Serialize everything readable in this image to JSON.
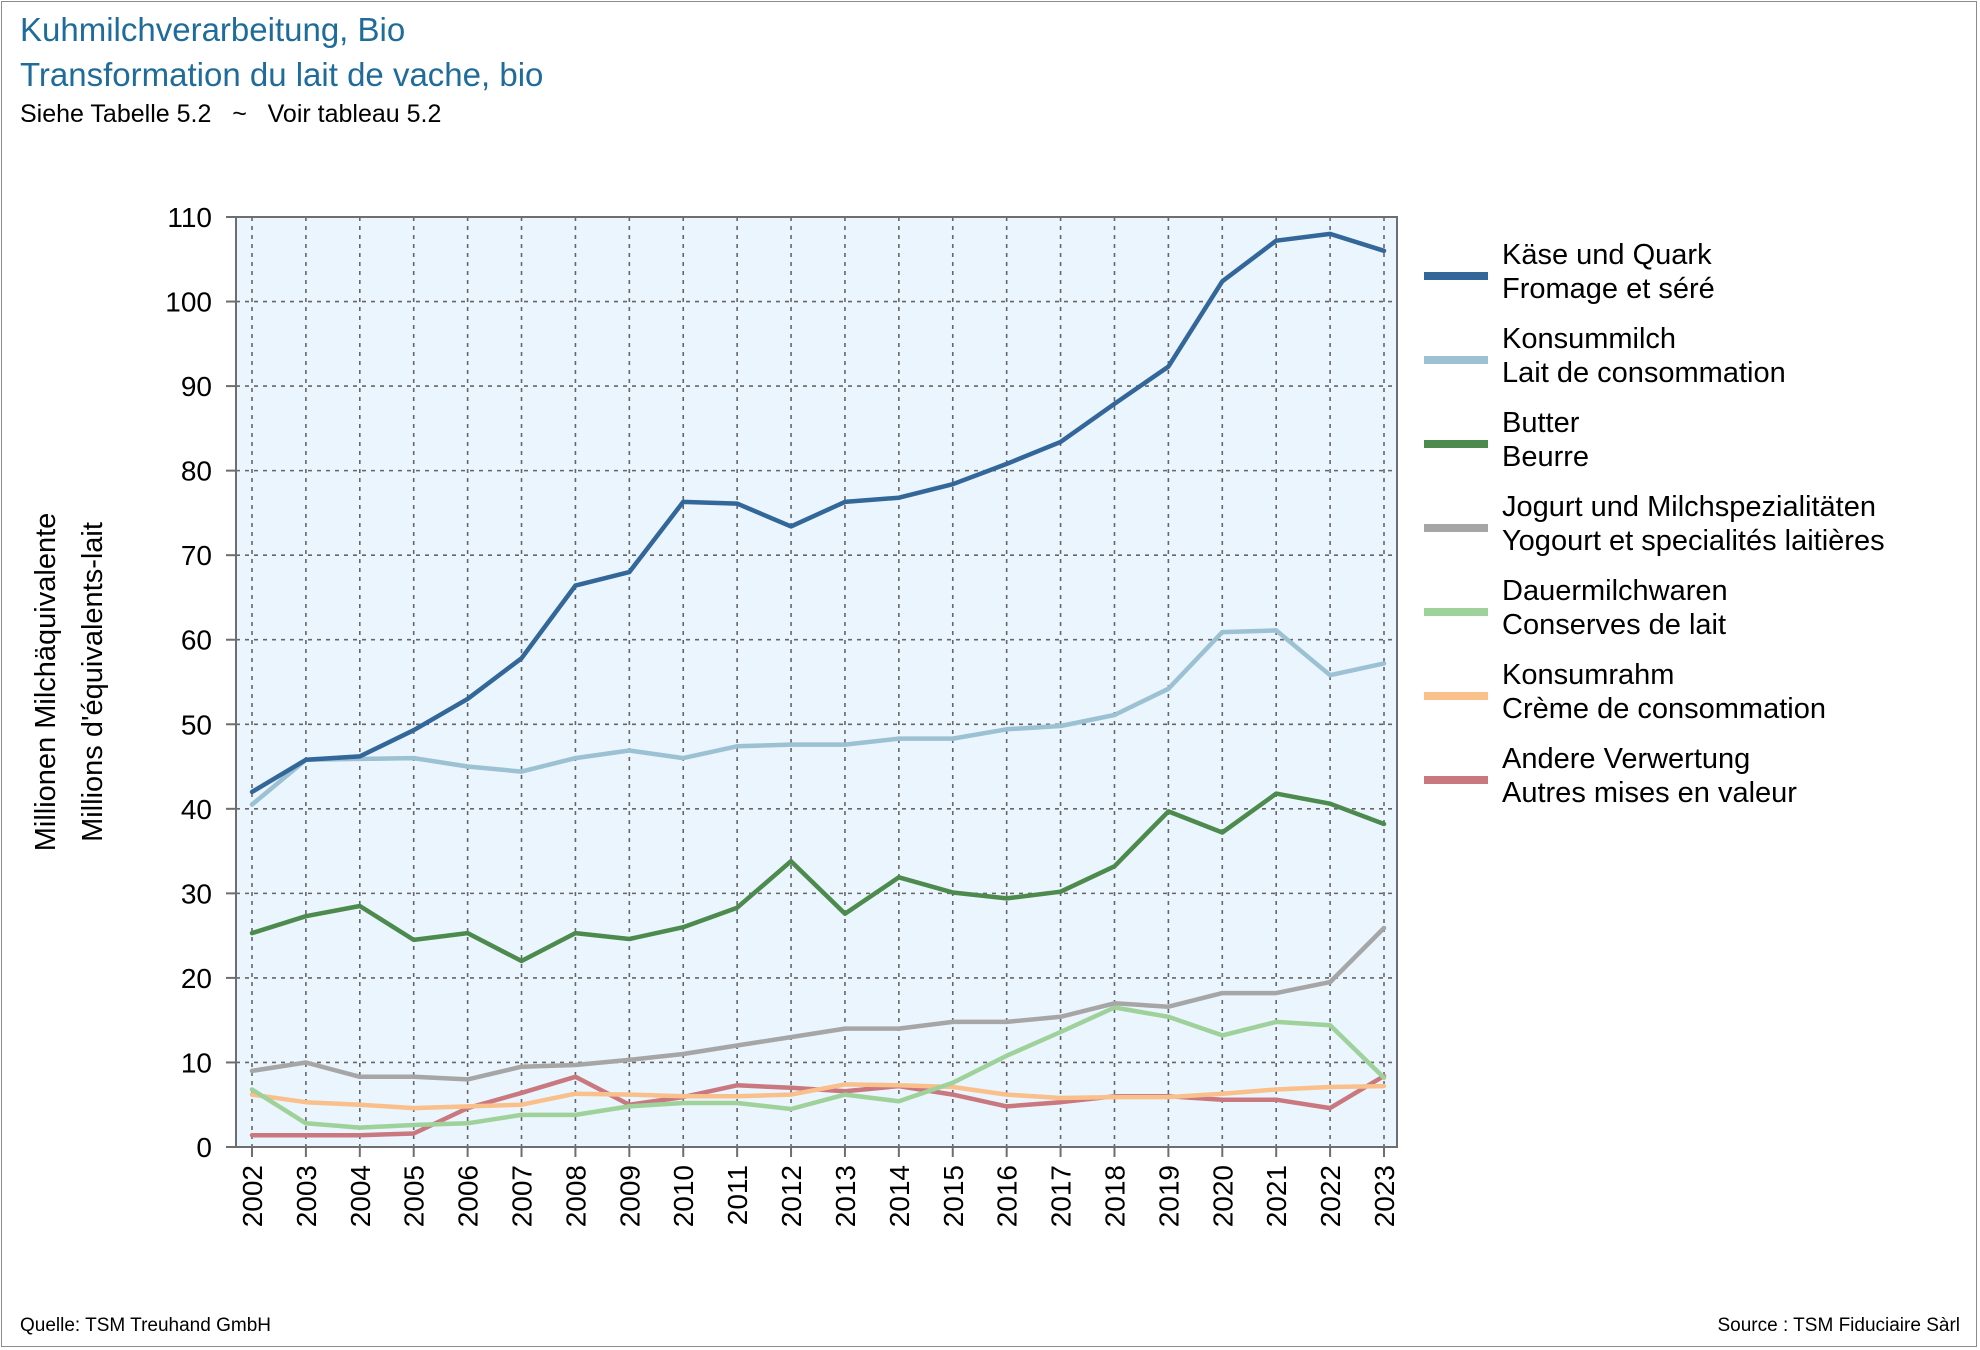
{
  "title": {
    "de": "Kuhmilchverarbeitung, Bio",
    "fr": "Transformation du lait de vache, bio",
    "subtitle": "Siehe Tabelle 5.2   ~   Voir tableau 5.2"
  },
  "footer": {
    "left": "Quelle: TSM Treuhand GmbH",
    "right": "Source : TSM Fiduciaire Sàrl"
  },
  "chart_data": {
    "type": "line",
    "ylabel": [
      "Millionen Milchäquivalente",
      "Millions d'équivalents-lait"
    ],
    "xlabel": "",
    "ylim": [
      0,
      110
    ],
    "yticks": [
      0,
      10,
      20,
      30,
      40,
      50,
      60,
      70,
      80,
      90,
      100,
      110
    ],
    "grid": true,
    "legend_position": "right",
    "plot_background": "#eaf5fd",
    "x": [
      "2002",
      "2003",
      "2004",
      "2005",
      "2006",
      "2007",
      "2008",
      "2009",
      "2010",
      "2011",
      "2012",
      "2013",
      "2014",
      "2015",
      "2016",
      "2017",
      "2018",
      "2019",
      "2020",
      "2021",
      "2022",
      "2023"
    ],
    "series": [
      {
        "name": [
          "Käse und Quark",
          "Fromage et séré"
        ],
        "color": "#336699",
        "values": [
          42.0,
          45.8,
          46.2,
          49.3,
          53.0,
          57.8,
          66.4,
          68.0,
          76.3,
          76.1,
          73.4,
          76.3,
          76.8,
          78.4,
          80.8,
          83.4,
          87.9,
          92.3,
          102.4,
          107.2,
          108.0,
          106.0
        ]
      },
      {
        "name": [
          "Konsummilch",
          "Lait de consommation"
        ],
        "color": "#9bc1d3",
        "values": [
          40.5,
          45.8,
          45.9,
          46.0,
          45.0,
          44.4,
          46.0,
          46.9,
          46.0,
          47.4,
          47.6,
          47.6,
          48.3,
          48.3,
          49.4,
          49.8,
          51.1,
          54.2,
          60.9,
          61.1,
          55.8,
          57.2
        ]
      },
      {
        "name": [
          "Butter",
          "Beurre"
        ],
        "color": "#4d8a4d",
        "values": [
          25.3,
          27.3,
          28.5,
          24.5,
          25.3,
          22.0,
          25.3,
          24.6,
          26.0,
          28.3,
          33.8,
          27.6,
          31.9,
          30.1,
          29.4,
          30.2,
          33.2,
          39.7,
          37.2,
          41.8,
          40.6,
          38.2
        ]
      },
      {
        "name": [
          "Jogurt und Milchspezialitäten",
          "Yogourt et specialités laitières"
        ],
        "color": "#a6a6a6",
        "values": [
          9.0,
          10.0,
          8.3,
          8.3,
          8.0,
          9.5,
          9.7,
          10.3,
          11.0,
          12.0,
          13.0,
          14.0,
          14.0,
          14.8,
          14.8,
          15.4,
          17.0,
          16.6,
          18.2,
          18.2,
          19.5,
          25.9
        ]
      },
      {
        "name": [
          "Dauermilchwaren",
          "Conserves de lait"
        ],
        "color": "#9fd19a",
        "values": [
          6.8,
          2.8,
          2.3,
          2.6,
          2.8,
          3.8,
          3.8,
          4.8,
          5.2,
          5.2,
          4.5,
          6.2,
          5.4,
          7.6,
          10.8,
          13.6,
          16.5,
          15.4,
          13.2,
          14.8,
          14.4,
          8.2
        ]
      },
      {
        "name": [
          "Konsumrahm",
          "Crème de consommation"
        ],
        "color": "#f9c08b",
        "values": [
          6.2,
          5.3,
          5.0,
          4.6,
          4.8,
          5.0,
          6.3,
          6.2,
          6.0,
          6.0,
          6.2,
          7.4,
          7.3,
          7.1,
          6.2,
          5.8,
          5.9,
          5.9,
          6.3,
          6.8,
          7.1,
          7.2
        ]
      },
      {
        "name": [
          "Andere Verwertung",
          "Autres mises en valeur"
        ],
        "color": "#c97880",
        "values": [
          1.4,
          1.4,
          1.4,
          1.6,
          4.6,
          6.4,
          8.3,
          5.0,
          5.9,
          7.3,
          7.0,
          6.6,
          7.2,
          6.2,
          4.8,
          5.3,
          6.0,
          6.0,
          5.6,
          5.6,
          4.6,
          8.4
        ]
      }
    ]
  }
}
